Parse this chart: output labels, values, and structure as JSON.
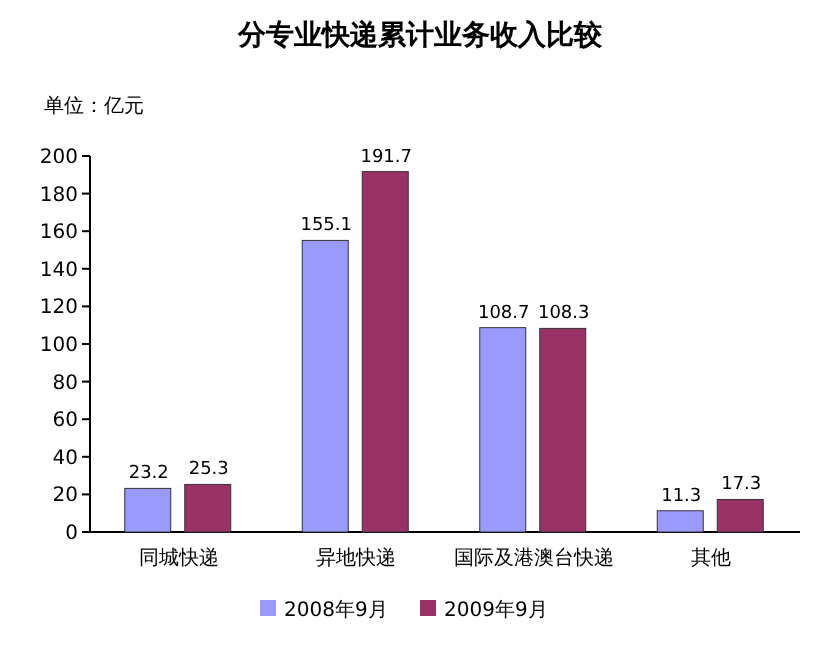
{
  "chart_data": {
    "type": "bar",
    "title": "分专业快递累计业务收入比较",
    "ylabel": "单位：亿元",
    "categories": [
      "同城快递",
      "异地快递",
      "国际及港澳台快递",
      "其他"
    ],
    "series": [
      {
        "name": "2008年9月",
        "color": "#9999ff",
        "values": [
          23.2,
          155.1,
          108.7,
          11.3
        ]
      },
      {
        "name": "2009年9月",
        "color": "#993366",
        "values": [
          25.3,
          191.7,
          108.3,
          17.3
        ]
      }
    ],
    "ylim": [
      0,
      200
    ],
    "yticks": [
      0,
      20,
      40,
      60,
      80,
      100,
      120,
      140,
      160,
      180,
      200
    ],
    "data_labels": true,
    "grid": false,
    "legend": "bottom"
  }
}
